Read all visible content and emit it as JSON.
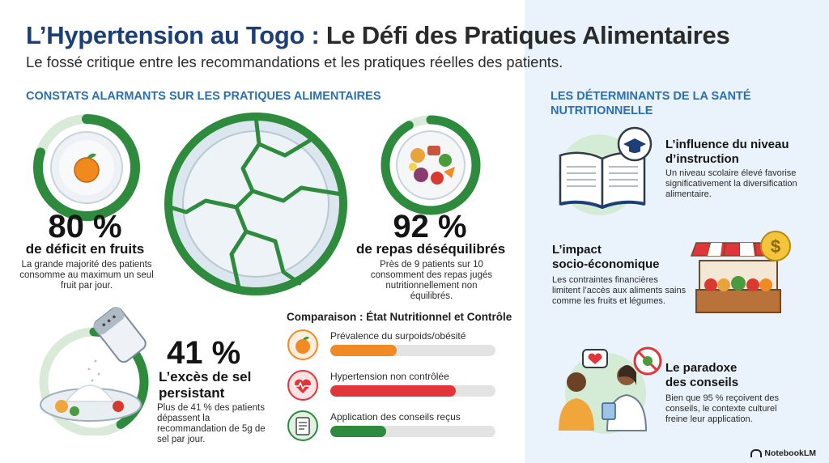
{
  "header": {
    "title_part1": "L’Hypertension au Togo : ",
    "title_part2": "Le Défi des Pratiques Alimentaires",
    "subtitle": "Le fossé critique entre les recommandations et les pratiques réelles des patients."
  },
  "left_section": {
    "heading": "CONSTATS ALARMANTS SUR LES PRATIQUES ALIMENTAIRES",
    "stats": [
      {
        "value": "80 %",
        "label": "de déficit en fruits",
        "desc": "La grande majorité des patients consomme au maximum un seul fruit par jour.",
        "icon": "orange-plate-icon",
        "ring_fraction": 0.8
      },
      {
        "value": "92 %",
        "label": "de repas déséquilibrés",
        "desc": "Près de 9 patients sur 10 consomment des repas jugés nutritionnellement non équilibrés.",
        "icon": "mixed-food-plate-icon",
        "ring_fraction": 0.92
      },
      {
        "value": "41 %",
        "label_line1": "L’excès de sel",
        "label_line2": "persistant",
        "desc": "Plus de 41 % des patients dépassent la recommandation de 5g de sel par jour.",
        "icon": "salt-shaker-icon",
        "ring_fraction": 0.41
      }
    ],
    "comparison": {
      "title": "Comparaison : État Nutritionnel et Contrôle",
      "bars": [
        {
          "label": "Prévalence du surpoids/obésité",
          "fraction": 0.4,
          "color": "#f08a24",
          "icon": "orange-icon"
        },
        {
          "label": "Hypertension non contrôlée",
          "fraction": 0.76,
          "color": "#e2343b",
          "icon": "heart-pulse-icon"
        },
        {
          "label": "Application des conseils reçus",
          "fraction": 0.34,
          "color": "#2e8b3d",
          "icon": "checklist-icon"
        }
      ]
    }
  },
  "right_section": {
    "heading": "LES DÉTERMINANTS DE LA SANTÉ NUTRITIONNELLE",
    "items": [
      {
        "title_line1": "L’influence du niveau",
        "title_line2": "d’instruction",
        "desc_line1": "Un niveau scolaire élevé favorise",
        "desc_line2": "significativement la diversification",
        "desc_line3": "alimentaire.",
        "icon": "book-graduation-icon"
      },
      {
        "title_line1": "L’impact",
        "title_line2": "socio-économique",
        "desc_line1": "Les contraintes financières",
        "desc_line2": "limitent l’accès aux aliments sains",
        "desc_line3": "comme les fruits et légumes.",
        "icon": "market-stall-icon"
      },
      {
        "title_line1": "Le paradoxe",
        "title_line2": "des conseils",
        "desc_line1": "Bien que 95 % reçoivent des",
        "desc_line2": "conseils, le contexte culturel",
        "desc_line3": "freine leur application.",
        "icon": "doctor-patient-icon"
      }
    ]
  },
  "branding": {
    "label": "NotebookLM"
  },
  "colors": {
    "accent_blue": "#2a6fb0",
    "title_blue": "#1d3f78",
    "green": "#2e8b3d",
    "orange": "#f08a24",
    "red": "#e2343b"
  }
}
